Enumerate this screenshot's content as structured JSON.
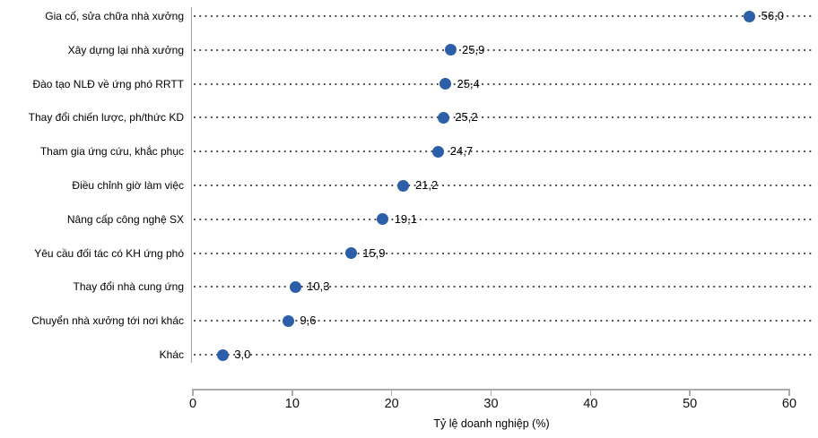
{
  "chart_data": {
    "type": "scatter",
    "subtype": "dot-plot-horizontal",
    "title": "",
    "categories": [
      "Gia cố, sửa chữa nhà xưởng",
      "Xây dựng lại nhà xưởng",
      "Đào tạo NLĐ về ứng phó RRTT",
      "Thay đổi chiến lược, ph/thức KD",
      "Tham gia ứng cứu, khắc phục",
      "Điều chỉnh giờ làm việc",
      "Nâng cấp công nghệ SX",
      "Yêu cầu đối tác có KH ứng phó",
      "Thay đổi nhà cung ứng",
      "Chuyển nhà xưởng tới nơi khác",
      "Khác"
    ],
    "values": [
      56.0,
      25.9,
      25.4,
      25.2,
      24.7,
      21.2,
      19.1,
      15.9,
      10.3,
      9.6,
      3.0
    ],
    "value_labels": [
      "56,0",
      "25,9",
      "25,4",
      "25,2",
      "24,7",
      "21,2",
      "19,1",
      "15,9",
      "10,3",
      "9,6",
      "3,0"
    ],
    "xlabel": "Tỷ lệ doanh nghiệp (%)",
    "ylabel": "",
    "xlim": [
      0,
      60
    ],
    "xticks": [
      0,
      10,
      20,
      30,
      40,
      50,
      60
    ],
    "grid": "dotted-horizontal-leader-lines",
    "legend": "none",
    "colors": {
      "dot": "#2d5fa9",
      "leader_dots": "#3d3d3d",
      "axis_line": "#ababab",
      "category_axis_line": "#9e9e9e",
      "text": "#000000",
      "background": "#ffffff"
    }
  }
}
